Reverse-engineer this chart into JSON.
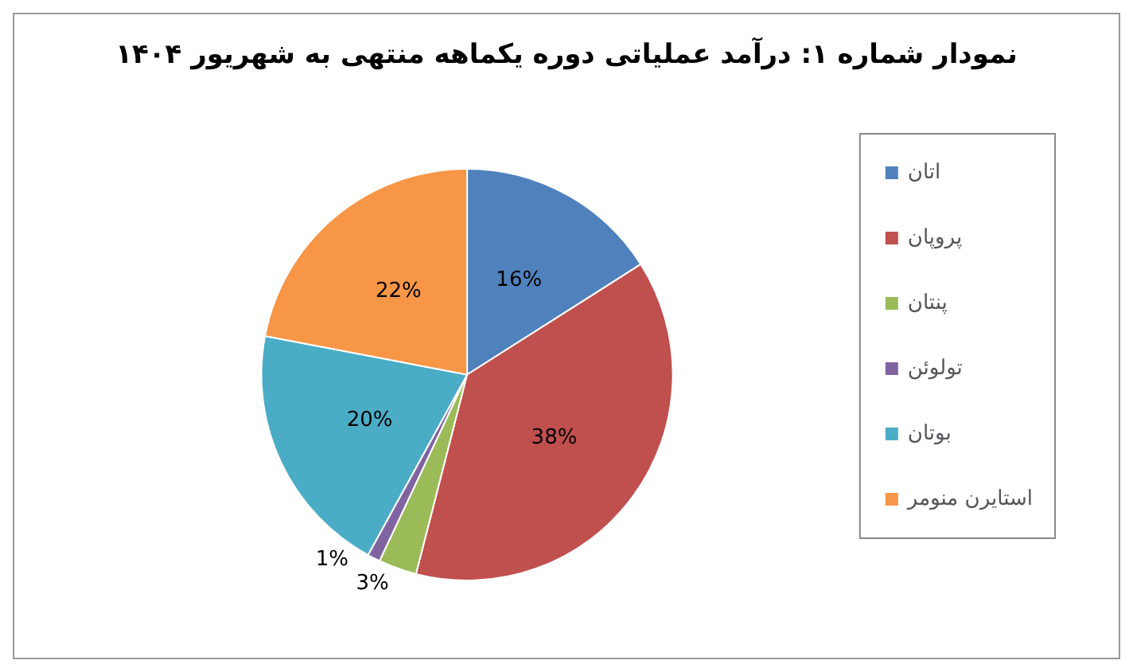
{
  "chart_data": {
    "type": "pie",
    "title": "نمودار شماره ۱: درآمد عملیاتی دوره یکماهه منتهی به شهریور ۱۴۰۴",
    "categories": [
      "اتان",
      "پروپان",
      "پنتان",
      "تولوئن",
      "بوتان",
      "استایرن منومر"
    ],
    "values": [
      16,
      38,
      3,
      1,
      20,
      22
    ],
    "colors": [
      "#4f81bd",
      "#c0504d",
      "#9bbb59",
      "#8064a2",
      "#4bacc6",
      "#f79646"
    ],
    "legend": "right",
    "value_labels": [
      "16%",
      "38%",
      "3%",
      "1%",
      "20%",
      "22%"
    ]
  }
}
